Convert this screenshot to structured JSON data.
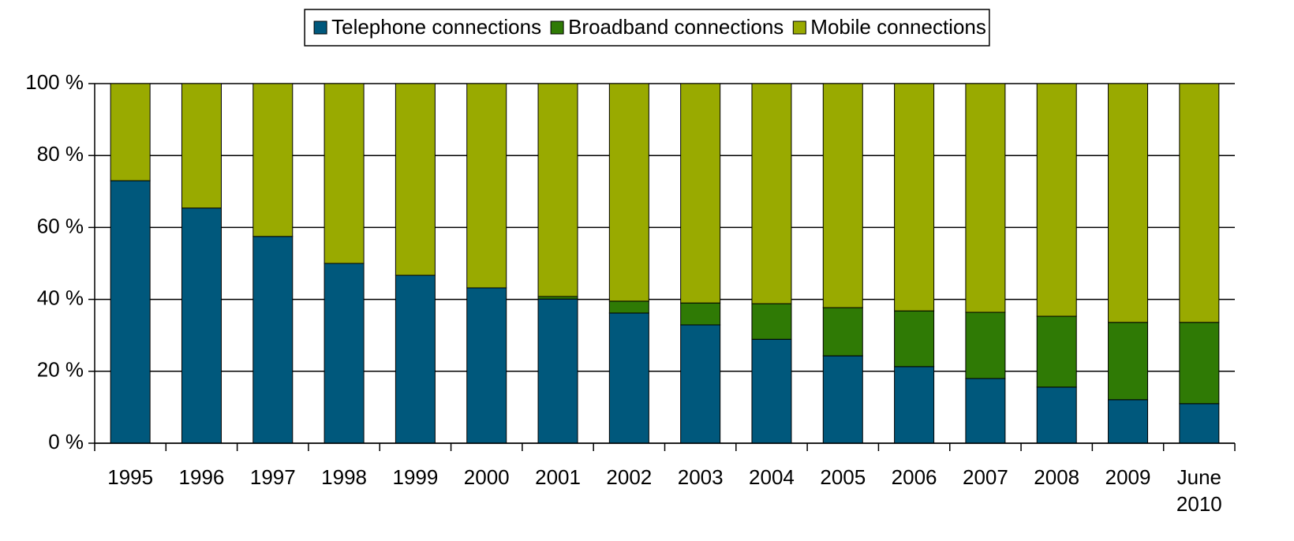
{
  "chart_data": {
    "type": "bar",
    "stacked": true,
    "categories": [
      "1995",
      "1996",
      "1997",
      "1998",
      "1999",
      "2000",
      "2001",
      "2002",
      "2003",
      "2004",
      "2005",
      "2006",
      "2007",
      "2008",
      "2009",
      "June 2010"
    ],
    "series": [
      {
        "name": "Telephone connections",
        "color": "#00587c",
        "values": [
          73.0,
          65.4,
          57.5,
          50.0,
          46.7,
          43.2,
          40.1,
          36.2,
          32.9,
          28.9,
          24.3,
          21.3,
          18.0,
          15.6,
          12.1,
          11.0
        ]
      },
      {
        "name": "Broadband connections",
        "color": "#2f7a05",
        "values": [
          0,
          0,
          0,
          0,
          0,
          0,
          0.7,
          3.3,
          6.1,
          9.9,
          13.4,
          15.5,
          18.4,
          19.7,
          21.5,
          22.6
        ]
      },
      {
        "name": "Mobile connections",
        "color": "#99aa00",
        "values": [
          27.0,
          34.6,
          42.5,
          50.0,
          53.3,
          56.8,
          59.2,
          60.5,
          61.0,
          61.2,
          62.3,
          63.2,
          63.6,
          64.7,
          66.4,
          66.4
        ]
      }
    ],
    "ylim": [
      0,
      100
    ],
    "yticks": [
      {
        "value": 0,
        "label": "0 %"
      },
      {
        "value": 20,
        "label": "20 %"
      },
      {
        "value": 40,
        "label": "40 %"
      },
      {
        "value": 60,
        "label": "60 %"
      },
      {
        "value": 80,
        "label": "80 %"
      },
      {
        "value": 100,
        "label": "100 %"
      }
    ],
    "grid": true,
    "legend": "top"
  }
}
